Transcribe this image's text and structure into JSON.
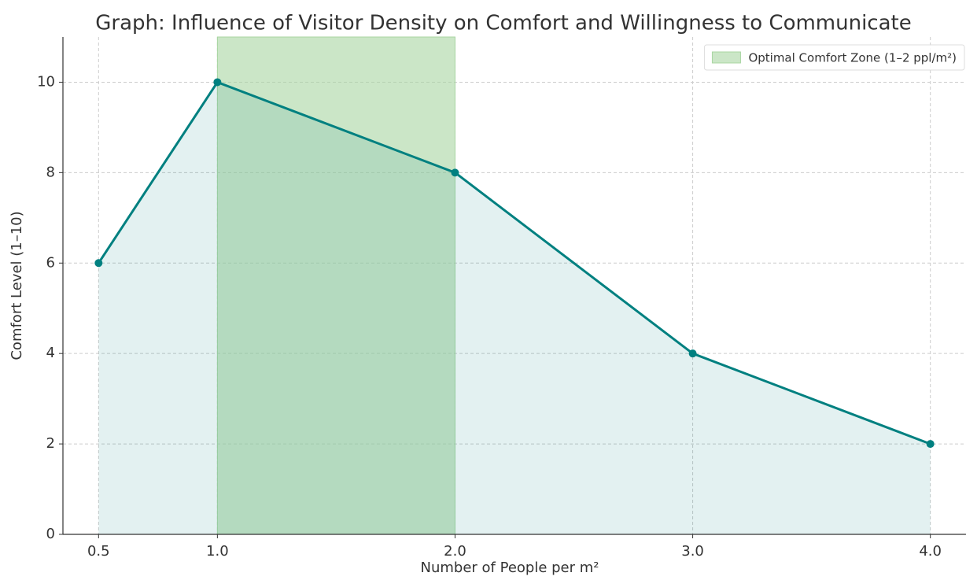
{
  "chart_data": {
    "type": "line",
    "title": "Graph: Influence of Visitor Density on Comfort and Willingness to Communicate",
    "xlabel": "Number of People per m²",
    "ylabel": "Comfort Level (1–10)",
    "x": [
      0.5,
      1,
      2,
      3,
      4
    ],
    "series": [
      {
        "name": "Comfort Level",
        "color": "#008080",
        "values": [
          6,
          10,
          8,
          4,
          2
        ]
      }
    ],
    "area_fill": true,
    "span": {
      "start": 1,
      "end": 2,
      "label": "Optimal Comfort Zone (1–2 ppl/m²)",
      "color": "#a8d5a2"
    },
    "xlim": [
      0.35,
      4.15
    ],
    "ylim": [
      0,
      11
    ],
    "xticks": [
      0.5,
      {
        "value": 1,
        "label": "1.0"
      },
      {
        "value": 2,
        "label": "2.0"
      },
      {
        "value": 3,
        "label": "3.0"
      },
      {
        "value": 4,
        "label": "4.0"
      }
    ],
    "yticks": [
      0,
      2,
      4,
      6,
      8,
      10
    ],
    "grid": true,
    "legend": "upper right"
  }
}
